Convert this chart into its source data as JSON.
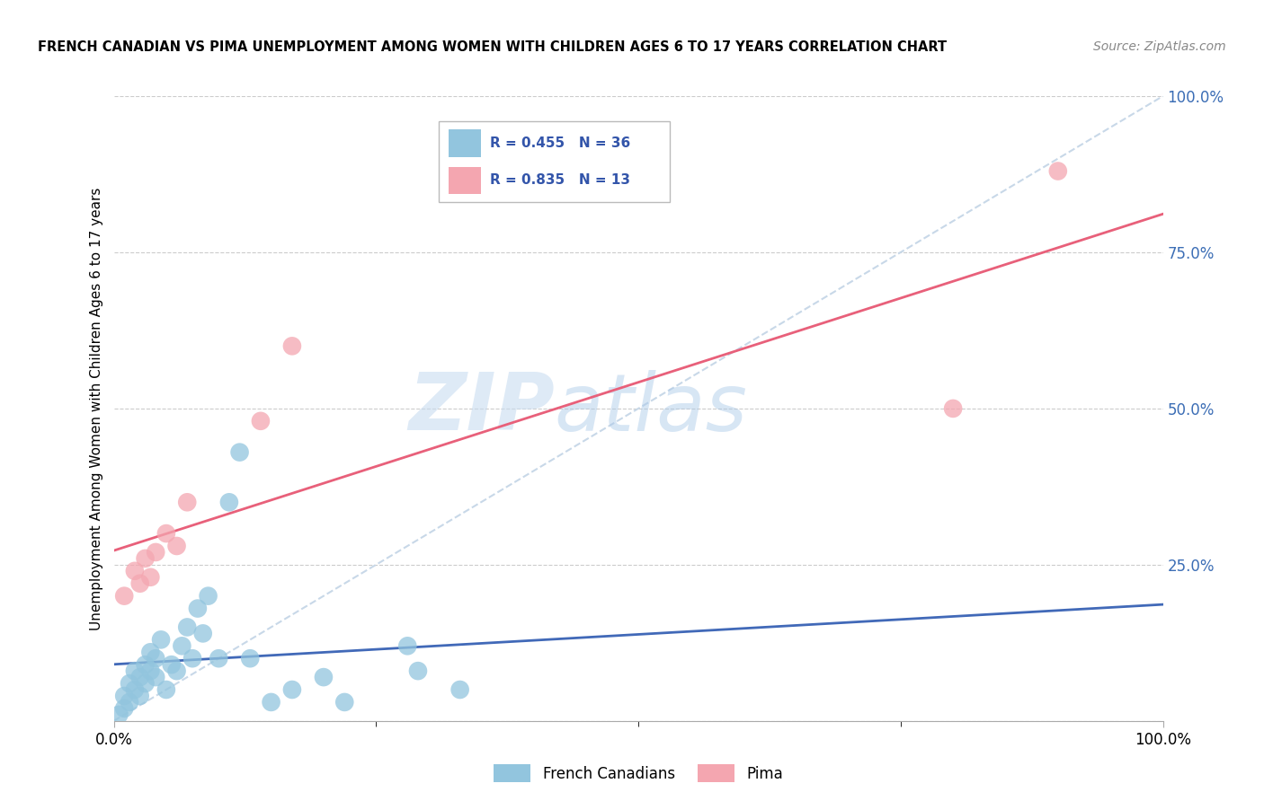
{
  "title": "FRENCH CANADIAN VS PIMA UNEMPLOYMENT AMONG WOMEN WITH CHILDREN AGES 6 TO 17 YEARS CORRELATION CHART",
  "source": "Source: ZipAtlas.com",
  "ylabel": "Unemployment Among Women with Children Ages 6 to 17 years",
  "legend_labels": [
    "French Canadians",
    "Pima"
  ],
  "R_french": 0.455,
  "N_french": 36,
  "R_pima": 0.835,
  "N_pima": 13,
  "watermark_zip": "ZIP",
  "watermark_atlas": "atlas",
  "xlim": [
    0,
    100
  ],
  "ylim": [
    0,
    100
  ],
  "blue_color": "#92C5DE",
  "pink_color": "#F4A6B0",
  "blue_line_color": "#4169B8",
  "pink_line_color": "#E8607A",
  "diagonal_color": "#C8D8E8",
  "french_x": [
    0.5,
    1.0,
    1.0,
    1.5,
    1.5,
    2.0,
    2.0,
    2.5,
    2.5,
    3.0,
    3.0,
    3.5,
    3.5,
    4.0,
    4.0,
    4.5,
    5.0,
    5.5,
    6.0,
    6.5,
    7.0,
    7.5,
    8.0,
    8.5,
    9.0,
    10.0,
    11.0,
    12.0,
    13.0,
    15.0,
    17.0,
    20.0,
    22.0,
    28.0,
    29.0,
    33.0
  ],
  "french_y": [
    1,
    2,
    4,
    3,
    6,
    5,
    8,
    4,
    7,
    6,
    9,
    8,
    11,
    7,
    10,
    13,
    5,
    9,
    8,
    12,
    15,
    10,
    18,
    14,
    20,
    10,
    35,
    43,
    10,
    3,
    5,
    7,
    3,
    12,
    8,
    5
  ],
  "pima_x": [
    1.0,
    2.0,
    2.5,
    3.0,
    3.5,
    4.0,
    5.0,
    6.0,
    7.0,
    14.0,
    17.0,
    80.0,
    90.0
  ],
  "pima_y": [
    20,
    24,
    22,
    26,
    23,
    27,
    30,
    28,
    35,
    48,
    60,
    50,
    88
  ]
}
